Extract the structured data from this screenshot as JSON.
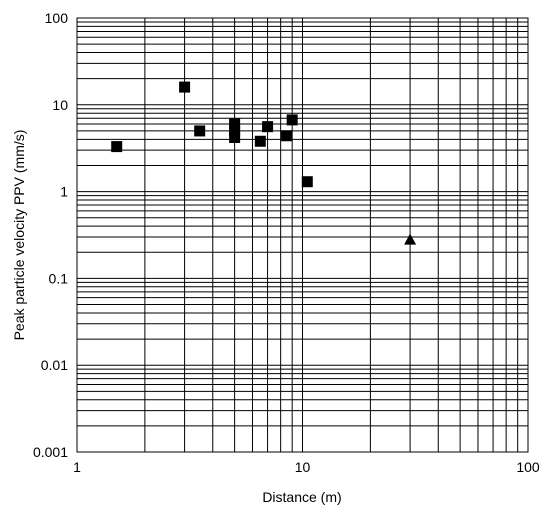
{
  "chart_data": {
    "type": "scatter",
    "title": "",
    "xlabel": "Distance (m)",
    "ylabel": "Peak particle velocity PPV  (mm/s)",
    "xscale": "log",
    "yscale": "log",
    "xlim": [
      1,
      100
    ],
    "ylim": [
      0.001,
      100
    ],
    "x_tick_labels": [
      "1",
      "10",
      "100"
    ],
    "y_tick_labels": [
      "0.001",
      "0.01",
      "0.1",
      "1",
      "10",
      "100"
    ],
    "grid": "major and minor, both axes",
    "legend": "none",
    "series": [
      {
        "marker": "square",
        "points": [
          {
            "x": 1.5,
            "y": 3.3
          },
          {
            "x": 3.0,
            "y": 16.0
          },
          {
            "x": 3.5,
            "y": 5.0
          },
          {
            "x": 5.0,
            "y": 6.0
          },
          {
            "x": 5.0,
            "y": 5.0
          },
          {
            "x": 5.0,
            "y": 4.2
          },
          {
            "x": 6.5,
            "y": 3.8
          },
          {
            "x": 7.0,
            "y": 5.6
          },
          {
            "x": 8.5,
            "y": 4.4
          },
          {
            "x": 9.0,
            "y": 6.7
          },
          {
            "x": 10.5,
            "y": 1.3
          }
        ]
      },
      {
        "marker": "triangle",
        "points": [
          {
            "x": 30,
            "y": 0.28
          }
        ]
      }
    ],
    "colors": {
      "marker": "#000000",
      "grid": "#000000",
      "background": "#ffffff"
    }
  }
}
